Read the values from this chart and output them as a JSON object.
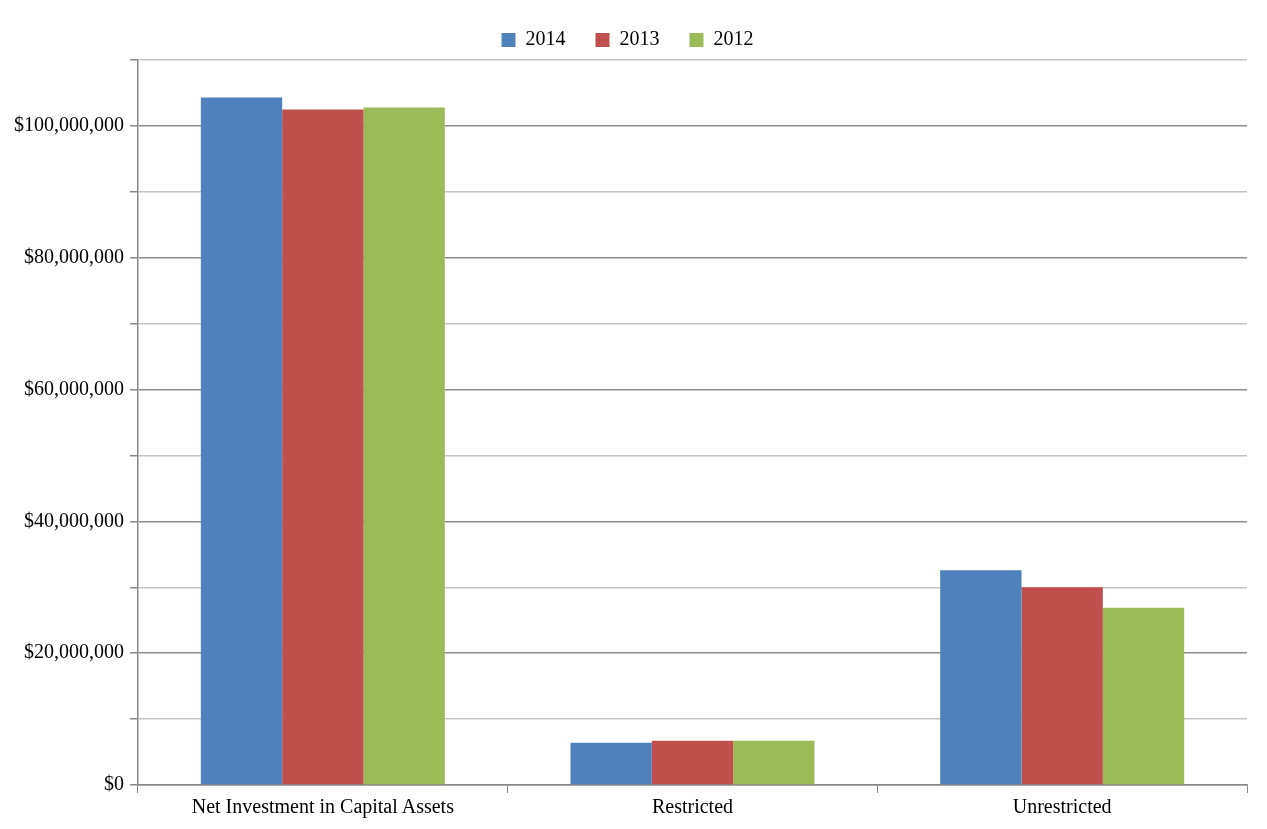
{
  "chart_data": {
    "type": "bar",
    "categories": [
      "Net Investment in Capital Assets",
      "Restricted",
      "Unrestricted"
    ],
    "series": [
      {
        "name": "2014",
        "color": "#4f81bd",
        "values": [
          104300000,
          6400000,
          32600000
        ]
      },
      {
        "name": "2013",
        "color": "#c0504d",
        "values": [
          102500000,
          6700000,
          30000000
        ]
      },
      {
        "name": "2012",
        "color": "#9bbb59",
        "values": [
          102800000,
          6700000,
          26900000
        ]
      }
    ],
    "ylim": [
      0,
      110000000
    ],
    "yticks": [
      {
        "value": 0,
        "label": "$0"
      },
      {
        "value": 10000000,
        "label": null
      },
      {
        "value": 20000000,
        "label": "$20,000,000"
      },
      {
        "value": 30000000,
        "label": null
      },
      {
        "value": 40000000,
        "label": "$40,000,000"
      },
      {
        "value": 50000000,
        "label": null
      },
      {
        "value": 60000000,
        "label": "$60,000,000"
      },
      {
        "value": 70000000,
        "label": null
      },
      {
        "value": 80000000,
        "label": "$80,000,000"
      },
      {
        "value": 90000000,
        "label": null
      },
      {
        "value": 100000000,
        "label": "$100,000,000"
      },
      {
        "value": 110000000,
        "label": null
      }
    ],
    "grid": "y",
    "legend": "top"
  }
}
